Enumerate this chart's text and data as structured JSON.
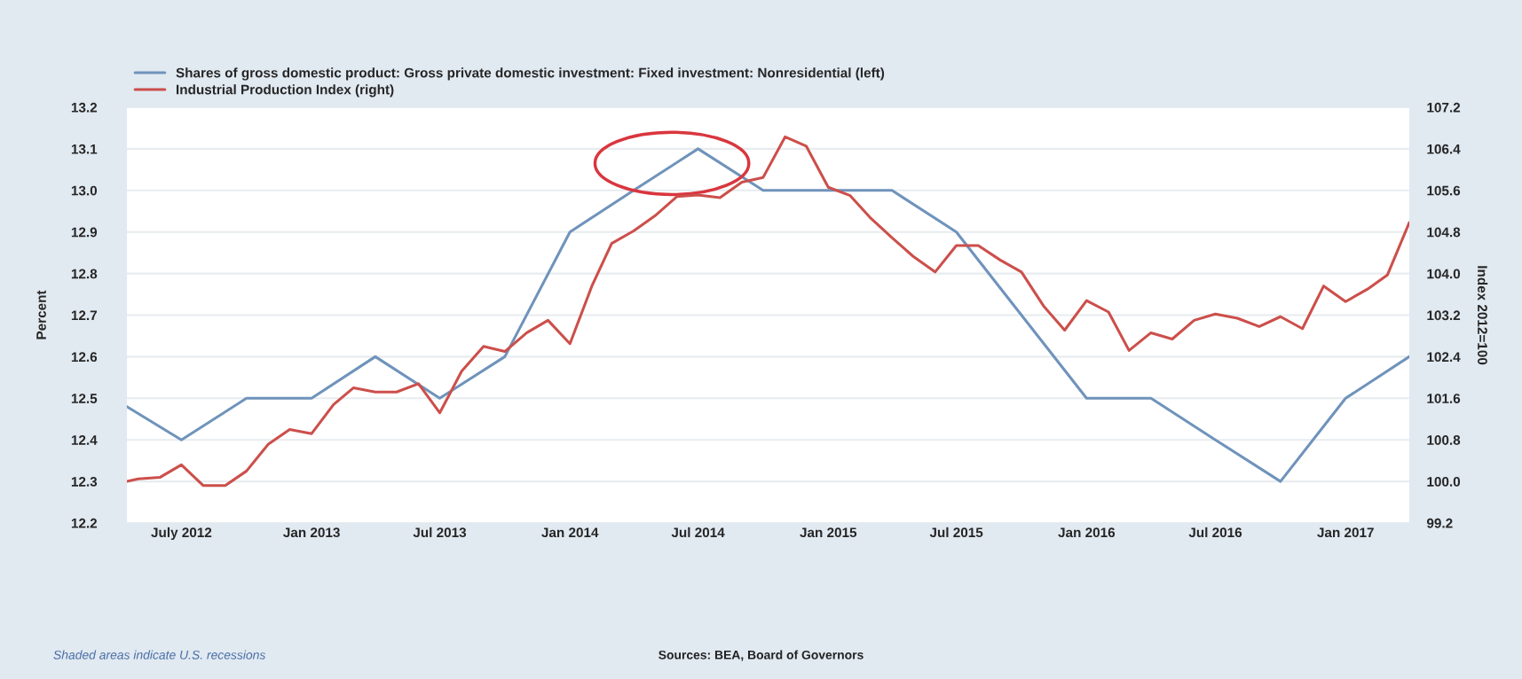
{
  "chart_data": {
    "type": "line",
    "ylabel": "Percent",
    "y2label": "Index 2012=100",
    "xlim": [
      "2012-04-15",
      "2017-04-01"
    ],
    "xticks": [
      {
        "value": "2012-07-01",
        "label": "July 2012"
      },
      {
        "value": "2013-01-01",
        "label": "Jan 2013"
      },
      {
        "value": "2013-07-01",
        "label": "Jul 2013"
      },
      {
        "value": "2014-01-01",
        "label": "Jan 2014"
      },
      {
        "value": "2014-07-01",
        "label": "Jul 2014"
      },
      {
        "value": "2015-01-01",
        "label": "Jan 2015"
      },
      {
        "value": "2015-07-01",
        "label": "Jul 2015"
      },
      {
        "value": "2016-01-01",
        "label": "Jan 2016"
      },
      {
        "value": "2016-07-01",
        "label": "Jul 2016"
      },
      {
        "value": "2017-01-01",
        "label": "Jan 2017"
      }
    ],
    "ylim": [
      12.2,
      13.2
    ],
    "yticks": [
      12.2,
      12.3,
      12.4,
      12.5,
      12.6,
      12.7,
      12.8,
      12.9,
      {
        "value": 13.0,
        "label": "13.0"
      },
      13.1,
      13.2
    ],
    "y2lim": [
      99.2,
      107.2
    ],
    "y2ticks": [
      99.2,
      {
        "value": 100.0,
        "label": "100.0"
      },
      100.8,
      101.6,
      102.4,
      103.2,
      {
        "value": 104.0,
        "label": "104.0"
      },
      104.8,
      105.6,
      106.4,
      107.2
    ],
    "grid": "y",
    "legend": "top left",
    "series": [
      {
        "name": "Shares of gross domestic product: Gross private domestic investment: Fixed investment: Nonresidential (left)",
        "color": "#6f93bb",
        "x": [
          "2012-04-15",
          "2012-07-01",
          "2012-10-01",
          "2013-01-01",
          "2013-04-01",
          "2013-07-01",
          "2013-10-01",
          "2014-01-01",
          "2014-04-01",
          "2014-07-01",
          "2014-10-01",
          "2015-01-01",
          "2015-04-01",
          "2015-07-01",
          "2015-10-01",
          "2016-01-01",
          "2016-04-01",
          "2016-07-01",
          "2016-10-01",
          "2017-01-01",
          "2017-04-01"
        ],
        "values": [
          12.48,
          12.4,
          12.5,
          12.5,
          12.6,
          12.5,
          12.6,
          12.9,
          13.0,
          13.1,
          13.0,
          13.0,
          13.0,
          12.9,
          12.7,
          12.5,
          12.5,
          12.4,
          12.3,
          12.5,
          12.6
        ]
      },
      {
        "name": "Industrial Production Index (right)",
        "color": "#cc4f4b",
        "axis": "y2",
        "x": [
          "2012-04-15",
          "2012-05-01",
          "2012-06-01",
          "2012-07-01",
          "2012-08-01",
          "2012-09-01",
          "2012-10-01",
          "2012-11-01",
          "2012-12-01",
          "2013-01-01",
          "2013-02-01",
          "2013-03-01",
          "2013-04-01",
          "2013-05-01",
          "2013-06-01",
          "2013-07-01",
          "2013-08-01",
          "2013-09-01",
          "2013-10-01",
          "2013-11-01",
          "2013-12-01",
          "2014-01-01",
          "2014-02-01",
          "2014-03-01",
          "2014-04-01",
          "2014-05-01",
          "2014-06-01",
          "2014-07-01",
          "2014-08-01",
          "2014-09-01",
          "2014-10-01",
          "2014-11-01",
          "2014-12-01",
          "2015-01-01",
          "2015-02-01",
          "2015-03-01",
          "2015-04-01",
          "2015-05-01",
          "2015-06-01",
          "2015-07-01",
          "2015-08-01",
          "2015-09-01",
          "2015-10-01",
          "2015-11-01",
          "2015-12-01",
          "2016-01-01",
          "2016-02-01",
          "2016-03-01",
          "2016-04-01",
          "2016-05-01",
          "2016-06-01",
          "2016-07-01",
          "2016-08-01",
          "2016-09-01",
          "2016-10-01",
          "2016-11-01",
          "2016-12-01",
          "2017-01-01",
          "2017-02-01",
          "2017-03-01",
          "2017-04-01"
        ],
        "values": [
          100.0,
          100.05,
          100.08,
          100.32,
          99.92,
          99.92,
          100.2,
          100.72,
          101.0,
          100.92,
          101.48,
          101.8,
          101.72,
          101.72,
          101.88,
          101.32,
          102.12,
          102.6,
          102.5,
          102.86,
          103.1,
          102.65,
          103.76,
          104.58,
          104.82,
          105.11,
          105.48,
          105.51,
          105.46,
          105.76,
          105.85,
          106.63,
          106.45,
          105.66,
          105.5,
          105.08,
          104.69,
          104.33,
          104.03,
          104.54,
          104.54,
          104.26,
          104.03,
          103.38,
          102.91,
          103.48,
          103.26,
          102.52,
          102.86,
          102.74,
          103.1,
          103.22,
          103.14,
          102.98,
          103.17,
          102.94,
          103.76,
          103.46,
          103.7,
          103.97,
          104.98
        ]
      }
    ],
    "annotations": [
      "Shaded areas indicate U.S. recessions",
      "Sources: BEA, Board of Governors"
    ]
  }
}
